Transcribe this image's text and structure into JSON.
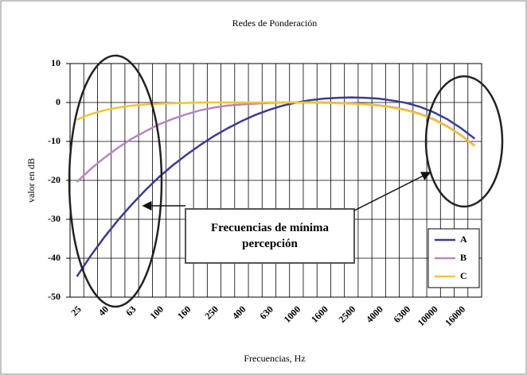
{
  "chart_data": {
    "type": "line",
    "title": "Redes de Ponderación",
    "y_label": "valor en dB",
    "x_label": "Frecuencias, Hz",
    "annotation": "Frecuencias de mínima percepción",
    "categories": [
      "25",
      null,
      "40",
      null,
      "63",
      null,
      "100",
      null,
      "160",
      null,
      "250",
      null,
      "400",
      null,
      "630",
      null,
      "1000",
      null,
      "1600",
      null,
      "2500",
      null,
      "4000",
      null,
      "6300",
      null,
      "10000",
      null,
      "16000",
      null
    ],
    "series": [
      {
        "name": "A",
        "color": "#3b3b8f",
        "values": [
          -44.7,
          -39.4,
          -34.6,
          -30.2,
          -26.2,
          -22.5,
          -19.1,
          -16.1,
          -13.4,
          -10.9,
          -8.6,
          -6.6,
          -4.8,
          -3.2,
          -1.9,
          -0.8,
          0,
          0.6,
          1.0,
          1.2,
          1.3,
          1.2,
          1.0,
          0.5,
          -0.1,
          -1.1,
          -2.5,
          -4.3,
          -6.6,
          -9.3
        ]
      },
      {
        "name": "B",
        "color": "#b785c4",
        "values": [
          -20.4,
          -17.1,
          -14.2,
          -11.6,
          -9.3,
          -7.4,
          -5.6,
          -4.2,
          -3.0,
          -2.0,
          -1.3,
          -0.8,
          -0.5,
          -0.3,
          -0.1,
          0,
          0,
          0,
          0,
          -0.1,
          -0.2,
          -0.4,
          -0.7,
          -1.2,
          -1.9,
          -2.9,
          -4.3,
          -6.1,
          -8.4,
          -11.1
        ]
      },
      {
        "name": "C",
        "color": "#f4c430",
        "values": [
          -4.4,
          -3.0,
          -2.0,
          -1.3,
          -0.8,
          -0.5,
          -0.3,
          -0.2,
          -0.1,
          0,
          0,
          0,
          0,
          0,
          0,
          0,
          0,
          0,
          -0.1,
          -0.2,
          -0.3,
          -0.5,
          -0.8,
          -1.3,
          -2.0,
          -3.0,
          -4.4,
          -6.2,
          -8.5,
          -11.2
        ]
      }
    ],
    "ylim": [
      -50,
      10
    ],
    "yticks": [
      -50,
      -40,
      -30,
      -20,
      -10,
      0,
      10
    ],
    "grid": true,
    "legend": "lower right"
  }
}
